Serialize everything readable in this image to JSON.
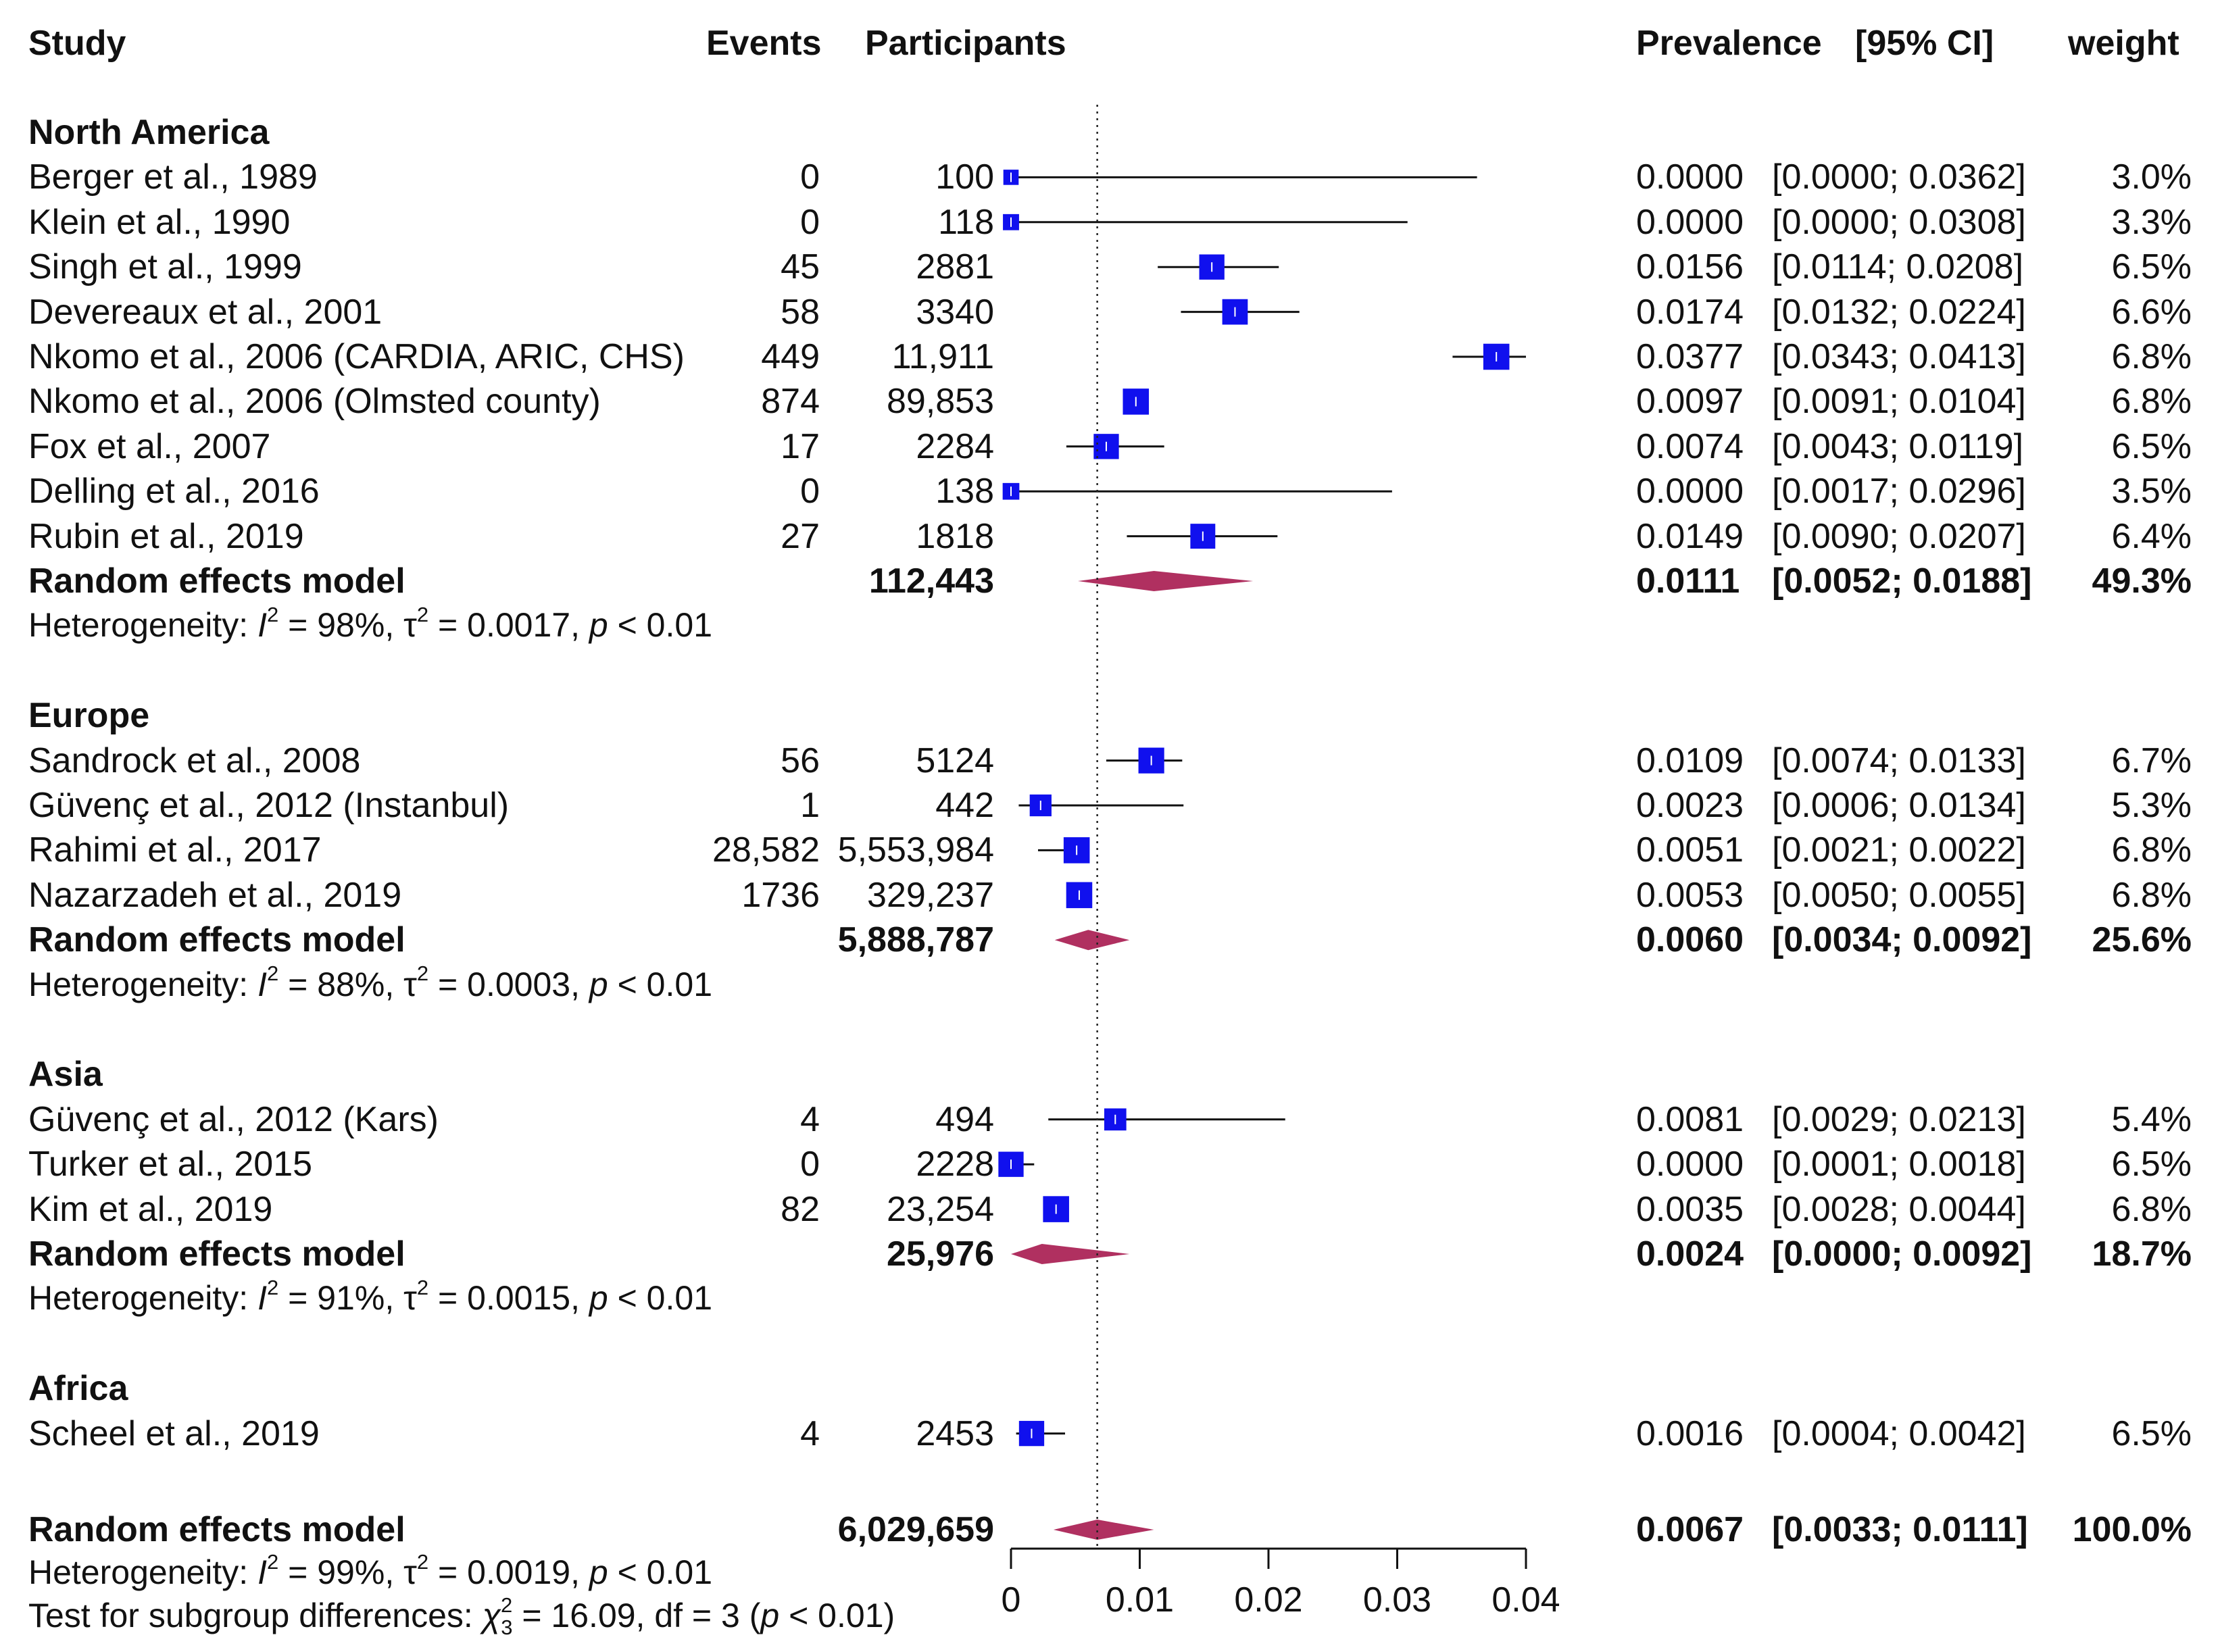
{
  "chart_data": {
    "type": "forest",
    "headers": {
      "study": "Study",
      "events": "Events",
      "participants": "Participants",
      "prevalence": "Prevalence",
      "ci": "[95% CI]",
      "weight": "weight"
    },
    "x_ticks": [
      "0",
      "0.01",
      "0.02",
      "0.03",
      "0.04"
    ],
    "x_tick_values": [
      0,
      0.01,
      0.02,
      0.03,
      0.04
    ],
    "xlim": [
      0,
      0.04
    ],
    "reference_line": 0.0067,
    "colors": {
      "square": "#1010ee",
      "diamond": "#b03060",
      "line": "#111111"
    },
    "groups": [
      {
        "name": "North America",
        "studies": [
          {
            "study": "Berger et al., 1989",
            "events": "0",
            "participants": "100",
            "prevalence": "0.0000",
            "ci": "[0.0000; 0.0362]",
            "weight": "3.0%",
            "est": 0.0,
            "lo": 0.0,
            "hi": 0.0362,
            "w": 3.0
          },
          {
            "study": "Klein et al., 1990",
            "events": "0",
            "participants": "118",
            "prevalence": "0.0000",
            "ci": "[0.0000; 0.0308]",
            "weight": "3.3%",
            "est": 0.0,
            "lo": 0.0,
            "hi": 0.0308,
            "w": 3.3
          },
          {
            "study": "Singh et al., 1999",
            "events": "45",
            "participants": "2881",
            "prevalence": "0.0156",
            "ci": "[0.0114; 0.0208]",
            "weight": "6.5%",
            "est": 0.0156,
            "lo": 0.0114,
            "hi": 0.0208,
            "w": 6.5
          },
          {
            "study": "Devereaux et al., 2001",
            "events": "58",
            "participants": "3340",
            "prevalence": "0.0174",
            "ci": "[0.0132; 0.0224]",
            "weight": "6.6%",
            "est": 0.0174,
            "lo": 0.0132,
            "hi": 0.0224,
            "w": 6.6
          },
          {
            "study": "Nkomo et al., 2006 (CARDIA, ARIC, CHS)",
            "events": "449",
            "participants": "11,911",
            "prevalence": "0.0377",
            "ci": "[0.0343; 0.0413]",
            "weight": "6.8%",
            "est": 0.0377,
            "lo": 0.0343,
            "hi": 0.0413,
            "w": 6.8
          },
          {
            "study": "Nkomo et al., 2006 (Olmsted county)",
            "events": "874",
            "participants": "89,853",
            "prevalence": "0.0097",
            "ci": "[0.0091; 0.0104]",
            "weight": "6.8%",
            "est": 0.0097,
            "lo": 0.0091,
            "hi": 0.0104,
            "w": 6.8
          },
          {
            "study": "Fox et al., 2007",
            "events": "17",
            "participants": "2284",
            "prevalence": "0.0074",
            "ci": "[0.0043; 0.0119]",
            "weight": "6.5%",
            "est": 0.0074,
            "lo": 0.0043,
            "hi": 0.0119,
            "w": 6.5
          },
          {
            "study": "Delling et al., 2016",
            "events": "0",
            "participants": "138",
            "prevalence": "0.0000",
            "ci": "[0.0017; 0.0296]",
            "weight": "3.5%",
            "est": 0.0,
            "lo": 0.0017,
            "hi": 0.0296,
            "w": 3.5
          },
          {
            "study": "Rubin et al., 2019",
            "events": "27",
            "participants": "1818",
            "prevalence": "0.0149",
            "ci": "[0.0090; 0.0207]",
            "weight": "6.4%",
            "est": 0.0149,
            "lo": 0.009,
            "hi": 0.0207,
            "w": 6.4
          }
        ],
        "model": {
          "label": "Random effects model",
          "participants": "112,443",
          "prevalence": "0.0111",
          "ci": "[0.0052; 0.0188]",
          "weight": "49.3%",
          "est": 0.0111,
          "lo": 0.0052,
          "hi": 0.0188
        },
        "heterogeneity": {
          "prefix": "Heterogeneity: ",
          "i2": "= 98%,",
          "tau2": "= 0.0017,",
          "p": "< 0.01"
        }
      },
      {
        "name": "Europe",
        "studies": [
          {
            "study": "Sandrock et al., 2008",
            "events": "56",
            "participants": "5124",
            "prevalence": "0.0109",
            "ci": "[0.0074; 0.0133]",
            "weight": "6.7%",
            "est": 0.0109,
            "lo": 0.0074,
            "hi": 0.0133,
            "w": 6.7
          },
          {
            "study": "Güvenç et al., 2012 (Instanbul)",
            "events": "1",
            "participants": "442",
            "prevalence": "0.0023",
            "ci": "[0.0006; 0.0134]",
            "weight": "5.3%",
            "est": 0.0023,
            "lo": 0.0006,
            "hi": 0.0134,
            "w": 5.3
          },
          {
            "study": "Rahimi et al., 2017",
            "events": "28,582",
            "participants": "5,553,984",
            "prevalence": "0.0051",
            "ci": "[0.0021; 0.0022]",
            "weight": "6.8%",
            "est": 0.0051,
            "lo": 0.0021,
            "hi": 0.0022,
            "w": 6.8
          },
          {
            "study": "Nazarzadeh et al., 2019",
            "events": "1736",
            "participants": "329,237",
            "prevalence": "0.0053",
            "ci": "[0.0050; 0.0055]",
            "weight": "6.8%",
            "est": 0.0053,
            "lo": 0.005,
            "hi": 0.0055,
            "w": 6.8
          }
        ],
        "model": {
          "label": "Random effects model",
          "participants": "5,888,787",
          "prevalence": "0.0060",
          "ci": "[0.0034; 0.0092]",
          "weight": "25.6%",
          "est": 0.006,
          "lo": 0.0034,
          "hi": 0.0092
        },
        "heterogeneity": {
          "prefix": "Heterogeneity: ",
          "i2": "= 88%,",
          "tau2": "= 0.0003,",
          "p": "< 0.01"
        }
      },
      {
        "name": "Asia",
        "studies": [
          {
            "study": "Güvenç et al., 2012 (Kars)",
            "events": "4",
            "participants": "494",
            "prevalence": "0.0081",
            "ci": "[0.0029; 0.0213]",
            "weight": "5.4%",
            "est": 0.0081,
            "lo": 0.0029,
            "hi": 0.0213,
            "w": 5.4
          },
          {
            "study": "Turker et al., 2015",
            "events": "0",
            "participants": "2228",
            "prevalence": "0.0000",
            "ci": "[0.0001; 0.0018]",
            "weight": "6.5%",
            "est": 0.0,
            "lo": 0.0001,
            "hi": 0.0018,
            "w": 6.5
          },
          {
            "study": "Kim et al., 2019",
            "events": "82",
            "participants": "23,254",
            "prevalence": "0.0035",
            "ci": "[0.0028; 0.0044]",
            "weight": "6.8%",
            "est": 0.0035,
            "lo": 0.0028,
            "hi": 0.0044,
            "w": 6.8
          }
        ],
        "model": {
          "label": "Random effects model",
          "participants": "25,976",
          "prevalence": "0.0024",
          "ci": "[0.0000; 0.0092]",
          "weight": "18.7%",
          "est": 0.0024,
          "lo": 0.0,
          "hi": 0.0092
        },
        "heterogeneity": {
          "prefix": "Heterogeneity: ",
          "i2": "= 91%,",
          "tau2": "= 0.0015,",
          "p": "< 0.01"
        }
      },
      {
        "name": "Africa",
        "studies": [
          {
            "study": "Scheel et al., 2019",
            "events": "4",
            "participants": "2453",
            "prevalence": "0.0016",
            "ci": "[0.0004; 0.0042]",
            "weight": "6.5%",
            "est": 0.0016,
            "lo": 0.0004,
            "hi": 0.0042,
            "w": 6.5
          }
        ]
      }
    ],
    "overall": {
      "label": "Random effects model",
      "participants": "6,029,659",
      "prevalence": "0.0067",
      "ci": "[0.0033; 0.0111]",
      "weight": "100.0%",
      "est": 0.0067,
      "lo": 0.0033,
      "hi": 0.0111,
      "heterogeneity": {
        "prefix": "Heterogeneity: ",
        "i2": "= 99%,",
        "tau2": "= 0.0019,",
        "p": "< 0.01"
      },
      "subgroup_test": {
        "prefix": "Test for subgroup differences: ",
        "chi2": "= 16.09, df = 3 (",
        "p": "< 0.01)"
      }
    }
  }
}
